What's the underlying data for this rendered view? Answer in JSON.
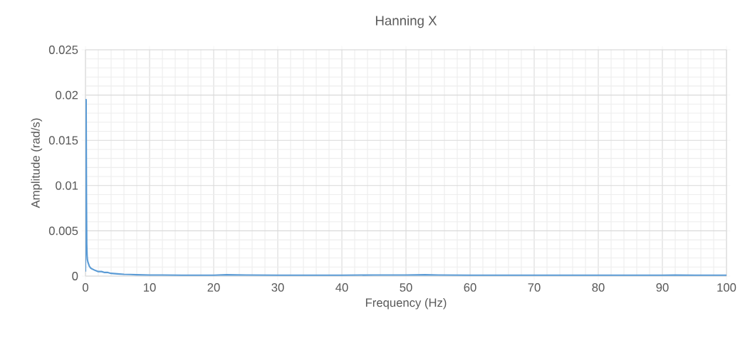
{
  "chart_data": {
    "type": "line",
    "title": "Hanning X",
    "xlabel": "Frequency (Hz)",
    "ylabel": "Amplitude (rad/s)",
    "x": [
      0,
      0.05,
      0.1,
      0.15,
      0.2,
      0.25,
      0.3,
      0.4,
      0.5,
      0.6,
      0.8,
      1,
      1.3,
      1.6,
      2,
      2.5,
      3,
      3.5,
      4,
      5,
      6,
      7,
      8,
      10,
      12,
      15,
      18,
      20,
      22,
      25,
      30,
      35,
      40,
      45,
      50,
      53,
      55,
      60,
      65,
      70,
      75,
      80,
      85,
      90,
      92,
      95,
      100
    ],
    "series": [
      {
        "color": "#5b9bd5",
        "values": [
          0.0005,
          0.0195,
          0.0195,
          0.009,
          0.0035,
          0.0023,
          0.0018,
          0.0015,
          0.0013,
          0.0011,
          0.0009,
          0.0008,
          0.0007,
          0.0006,
          0.0005,
          0.0005,
          0.0004,
          0.0004,
          0.0003,
          0.00025,
          0.0002,
          0.00018,
          0.00015,
          0.00012,
          0.00012,
          0.0001,
          0.0001,
          0.0001,
          0.00015,
          0.00012,
          0.0001,
          0.0001,
          0.0001,
          0.00012,
          0.00012,
          0.00015,
          0.00012,
          0.0001,
          0.0001,
          0.0001,
          0.0001,
          0.0001,
          0.0001,
          0.0001,
          0.00012,
          0.0001,
          0.0001
        ]
      }
    ],
    "xlim": [
      0,
      100
    ],
    "xticks": [
      0,
      10,
      20,
      30,
      40,
      50,
      60,
      70,
      80,
      90,
      100
    ],
    "ylim": [
      0,
      0.025
    ],
    "yticks": [
      0,
      0.005,
      0.01,
      0.015,
      0.02,
      0.025
    ],
    "grid": true,
    "marker": "none",
    "line_style": "solid"
  }
}
